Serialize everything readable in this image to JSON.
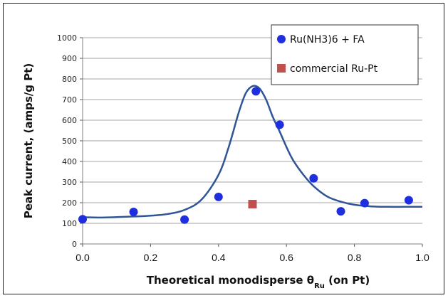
{
  "chart_data": {
    "type": "scatter",
    "xlabel": "Theoretical monodisperse θ",
    "xlabel_sub": "Ru",
    "xlabel_tail": " (on Pt)",
    "ylabel": "Peak current, (amps/g Pt)",
    "xlim": [
      0.0,
      1.0
    ],
    "ylim": [
      0,
      1000
    ],
    "x_ticks": [
      "0.0",
      "0.2",
      "0.4",
      "0.6",
      "0.8",
      "1.0"
    ],
    "x_tick_values": [
      0.0,
      0.2,
      0.4,
      0.6,
      0.8,
      1.0
    ],
    "y_ticks": [
      "0",
      "100",
      "200",
      "300",
      "400",
      "500",
      "600",
      "700",
      "800",
      "900",
      "1000"
    ],
    "y_tick_values": [
      0,
      100,
      200,
      300,
      400,
      500,
      600,
      700,
      800,
      900,
      1000
    ],
    "grid": "horizontal",
    "legend_position": "top-right",
    "series": [
      {
        "name": "Ru(NH3)6 + FA",
        "marker": "circle",
        "color": "#1f2fe0",
        "points": [
          {
            "x": 0.0,
            "y": 120
          },
          {
            "x": 0.15,
            "y": 155
          },
          {
            "x": 0.3,
            "y": 118
          },
          {
            "x": 0.4,
            "y": 228
          },
          {
            "x": 0.51,
            "y": 740
          },
          {
            "x": 0.58,
            "y": 578
          },
          {
            "x": 0.68,
            "y": 318
          },
          {
            "x": 0.76,
            "y": 158
          },
          {
            "x": 0.83,
            "y": 198
          },
          {
            "x": 0.96,
            "y": 212
          }
        ]
      },
      {
        "name": "commercial Ru-Pt",
        "marker": "square",
        "color": "#c0504d",
        "points": [
          {
            "x": 0.5,
            "y": 193
          }
        ]
      }
    ],
    "fit_curve": {
      "color": "#2f5597",
      "points": [
        [
          0.0,
          130
        ],
        [
          0.05,
          128
        ],
        [
          0.1,
          130
        ],
        [
          0.15,
          133
        ],
        [
          0.2,
          137
        ],
        [
          0.25,
          145
        ],
        [
          0.3,
          165
        ],
        [
          0.35,
          215
        ],
        [
          0.4,
          335
        ],
        [
          0.43,
          470
        ],
        [
          0.46,
          640
        ],
        [
          0.48,
          730
        ],
        [
          0.5,
          765
        ],
        [
          0.52,
          755
        ],
        [
          0.54,
          700
        ],
        [
          0.56,
          615
        ],
        [
          0.58,
          545
        ],
        [
          0.6,
          470
        ],
        [
          0.62,
          405
        ],
        [
          0.65,
          335
        ],
        [
          0.68,
          280
        ],
        [
          0.72,
          230
        ],
        [
          0.76,
          205
        ],
        [
          0.8,
          190
        ],
        [
          0.85,
          182
        ],
        [
          0.9,
          180
        ],
        [
          0.95,
          180
        ],
        [
          1.0,
          180
        ]
      ]
    }
  }
}
